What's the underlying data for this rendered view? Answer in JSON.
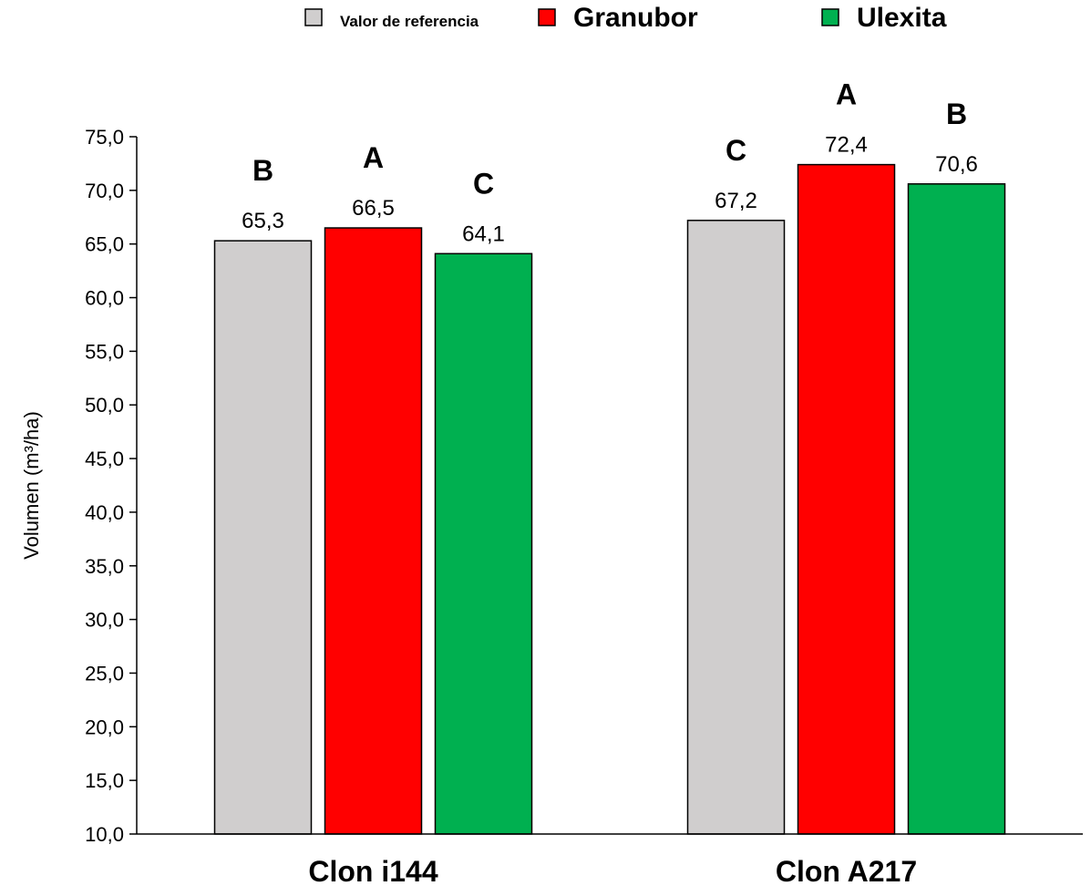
{
  "chart_data": {
    "type": "bar",
    "title": "",
    "xlabel": "",
    "ylabel": "Volumen (m³/ha)",
    "ylim": [
      10,
      75
    ],
    "ytick_step": 5,
    "grid": false,
    "legend_position": "top-center",
    "categories": [
      "Clon i144",
      "Clon A217"
    ],
    "series": [
      {
        "name": "Valor de referencia",
        "color": "#D0CECE",
        "values": [
          65.3,
          67.2
        ],
        "value_labels": [
          "65,3",
          "67,2"
        ],
        "letters": [
          "B",
          "C"
        ]
      },
      {
        "name": "Granubor",
        "color": "#FF0000",
        "values": [
          66.5,
          72.4
        ],
        "value_labels": [
          "66,5",
          "72,4"
        ],
        "letters": [
          "A",
          "A"
        ]
      },
      {
        "name": "Ulexita",
        "color": "#00B050",
        "values": [
          64.1,
          70.6
        ],
        "value_labels": [
          "64,1",
          "70,6"
        ],
        "letters": [
          "C",
          "B"
        ]
      }
    ],
    "tick_labels": [
      "10,0",
      "15,0",
      "20,0",
      "25,0",
      "30,0",
      "35,0",
      "40,0",
      "45,0",
      "50,0",
      "55,0",
      "60,0",
      "65,0",
      "70,0",
      "75,0"
    ]
  }
}
